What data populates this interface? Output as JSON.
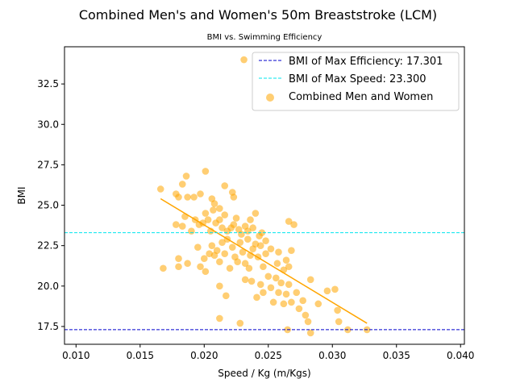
{
  "chart_data": {
    "type": "scatter",
    "title": "Combined Men's and Women's 50m Breaststroke (LCM)",
    "subtitle": "BMI vs. Swimming Efficiency",
    "xlabel": "Speed / Kg (m/Kgs)",
    "ylabel": "BMI",
    "xlim": [
      0.0091,
      0.0403
    ],
    "ylim": [
      16.4,
      34.8
    ],
    "x_ticks": [
      "0.010",
      "0.015",
      "0.020",
      "0.025",
      "0.030",
      "0.035",
      "0.040"
    ],
    "y_ticks": [
      "17.5",
      "20.0",
      "22.5",
      "25.0",
      "27.5",
      "30.0",
      "32.5"
    ],
    "grid": false,
    "legend_position": "top-right",
    "series": [
      {
        "name": "Combined Men and Women",
        "kind": "scatter",
        "color": "#ffa500",
        "points": [
          [
            0.0166,
            26.0
          ],
          [
            0.0168,
            21.1
          ],
          [
            0.0178,
            25.7
          ],
          [
            0.018,
            25.5
          ],
          [
            0.0183,
            26.3
          ],
          [
            0.0186,
            26.8
          ],
          [
            0.0187,
            25.5
          ],
          [
            0.0192,
            25.5
          ],
          [
            0.0197,
            25.7
          ],
          [
            0.0201,
            27.1
          ],
          [
            0.0206,
            25.4
          ],
          [
            0.0208,
            25.1
          ],
          [
            0.0212,
            24.8
          ],
          [
            0.0216,
            26.2
          ],
          [
            0.0222,
            25.8
          ],
          [
            0.0223,
            25.5
          ],
          [
            0.0178,
            23.8
          ],
          [
            0.0183,
            23.7
          ],
          [
            0.0185,
            24.3
          ],
          [
            0.019,
            23.4
          ],
          [
            0.0193,
            24.1
          ],
          [
            0.0196,
            23.8
          ],
          [
            0.0199,
            23.9
          ],
          [
            0.0201,
            24.5
          ],
          [
            0.0203,
            24.1
          ],
          [
            0.0205,
            23.4
          ],
          [
            0.0207,
            24.7
          ],
          [
            0.0209,
            23.9
          ],
          [
            0.0212,
            24.1
          ],
          [
            0.0214,
            23.6
          ],
          [
            0.0216,
            24.4
          ],
          [
            0.0218,
            23.4
          ],
          [
            0.0221,
            23.6
          ],
          [
            0.0223,
            23.8
          ],
          [
            0.0225,
            24.2
          ],
          [
            0.0227,
            23.5
          ],
          [
            0.0229,
            23.2
          ],
          [
            0.0232,
            23.7
          ],
          [
            0.0234,
            23.4
          ],
          [
            0.0236,
            24.1
          ],
          [
            0.0238,
            23.6
          ],
          [
            0.024,
            24.5
          ],
          [
            0.0243,
            23.1
          ],
          [
            0.0245,
            23.3
          ],
          [
            0.0248,
            22.8
          ],
          [
            0.0195,
            22.4
          ],
          [
            0.02,
            21.7
          ],
          [
            0.0204,
            22.0
          ],
          [
            0.0206,
            22.5
          ],
          [
            0.0208,
            21.9
          ],
          [
            0.021,
            22.2
          ],
          [
            0.0212,
            21.5
          ],
          [
            0.0214,
            22.7
          ],
          [
            0.0216,
            22.0
          ],
          [
            0.0218,
            22.9
          ],
          [
            0.022,
            21.1
          ],
          [
            0.0222,
            22.4
          ],
          [
            0.0224,
            21.8
          ],
          [
            0.0226,
            21.5
          ],
          [
            0.0228,
            22.7
          ],
          [
            0.023,
            22.1
          ],
          [
            0.0232,
            21.4
          ],
          [
            0.0234,
            22.9
          ],
          [
            0.0236,
            21.9
          ],
          [
            0.0238,
            22.3
          ],
          [
            0.024,
            22.6
          ],
          [
            0.0242,
            21.8
          ],
          [
            0.0244,
            22.5
          ],
          [
            0.0246,
            21.2
          ],
          [
            0.0248,
            22.0
          ],
          [
            0.018,
            21.7
          ],
          [
            0.018,
            21.2
          ],
          [
            0.0187,
            21.4
          ],
          [
            0.0197,
            21.2
          ],
          [
            0.0201,
            20.9
          ],
          [
            0.0212,
            20.0
          ],
          [
            0.0217,
            19.4
          ],
          [
            0.0232,
            20.4
          ],
          [
            0.0235,
            21.1
          ],
          [
            0.0237,
            20.3
          ],
          [
            0.0241,
            19.3
          ],
          [
            0.0244,
            20.1
          ],
          [
            0.0246,
            19.6
          ],
          [
            0.025,
            20.6
          ],
          [
            0.0252,
            19.9
          ],
          [
            0.0254,
            19.0
          ],
          [
            0.0256,
            20.5
          ],
          [
            0.0258,
            19.6
          ],
          [
            0.026,
            20.2
          ],
          [
            0.0262,
            18.9
          ],
          [
            0.0264,
            19.5
          ],
          [
            0.0266,
            20.1
          ],
          [
            0.0268,
            19.0
          ],
          [
            0.0272,
            19.6
          ],
          [
            0.0274,
            18.6
          ],
          [
            0.0277,
            19.1
          ],
          [
            0.0279,
            18.2
          ],
          [
            0.0283,
            20.4
          ],
          [
            0.0289,
            18.9
          ],
          [
            0.0296,
            19.7
          ],
          [
            0.0302,
            19.8
          ],
          [
            0.0304,
            18.5
          ],
          [
            0.0305,
            17.8
          ],
          [
            0.0312,
            17.3
          ],
          [
            0.0327,
            17.3
          ],
          [
            0.0283,
            17.1
          ],
          [
            0.0281,
            17.8
          ],
          [
            0.0265,
            17.3
          ],
          [
            0.0228,
            17.7
          ],
          [
            0.0212,
            18.0
          ],
          [
            0.0252,
            22.3
          ],
          [
            0.0258,
            22.1
          ],
          [
            0.0264,
            21.6
          ],
          [
            0.0266,
            21.2
          ],
          [
            0.0268,
            22.2
          ],
          [
            0.0262,
            21.0
          ],
          [
            0.0257,
            21.4
          ],
          [
            0.027,
            23.8
          ],
          [
            0.0266,
            24.0
          ],
          [
            0.0231,
            34.0
          ]
        ]
      },
      {
        "name": "",
        "kind": "trend-line",
        "color": "#ffa500",
        "points": [
          [
            0.0166,
            25.4
          ],
          [
            0.0327,
            17.7
          ]
        ]
      },
      {
        "name": "BMI of Max Efficiency: 17.301",
        "kind": "hline",
        "color": "#0000cd",
        "y": 17.301
      },
      {
        "name": "BMI of Max Speed: 23.300",
        "kind": "hline",
        "color": "#00e5ee",
        "y": 23.3
      }
    ]
  }
}
